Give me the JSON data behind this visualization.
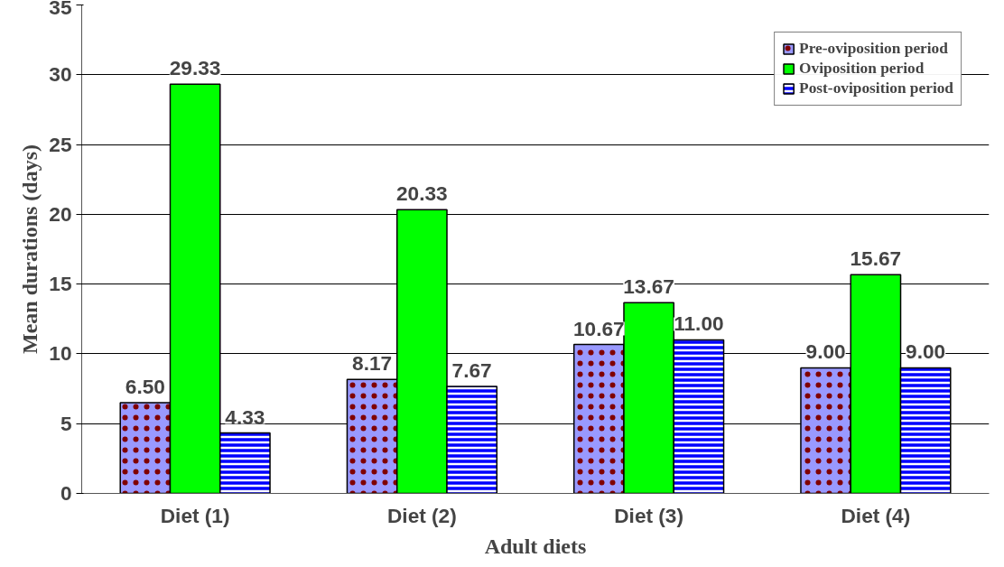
{
  "chart_data": {
    "type": "bar",
    "xlabel": "Adult diets",
    "ylabel": "Mean durations (days)",
    "categories": [
      "Diet (1)",
      "Diet (2)",
      "Diet (3)",
      "Diet (4)"
    ],
    "series": [
      {
        "name": "Pre-oviposition period",
        "color": "#9999ff",
        "values": [
          6.5,
          8.17,
          10.67,
          9.0
        ],
        "value_labels": [
          "6.50",
          "8.17",
          "10.67",
          "9.00"
        ]
      },
      {
        "name": "Oviposition period",
        "color": "#00ff00",
        "values": [
          29.33,
          20.33,
          13.67,
          15.67
        ],
        "value_labels": [
          "29.33",
          "20.33",
          "13.67",
          "15.67"
        ]
      },
      {
        "name": "Post-oviposition period",
        "color": "#0000ff",
        "values": [
          4.33,
          7.67,
          11.0,
          9.0
        ],
        "value_labels": [
          "4.33",
          "7.67",
          "11.00",
          "9.00"
        ]
      }
    ],
    "ylim": [
      0,
      35
    ],
    "yticks": [
      0,
      5,
      10,
      15,
      20,
      25,
      30,
      35
    ],
    "grid": "y",
    "legend": "top right"
  }
}
